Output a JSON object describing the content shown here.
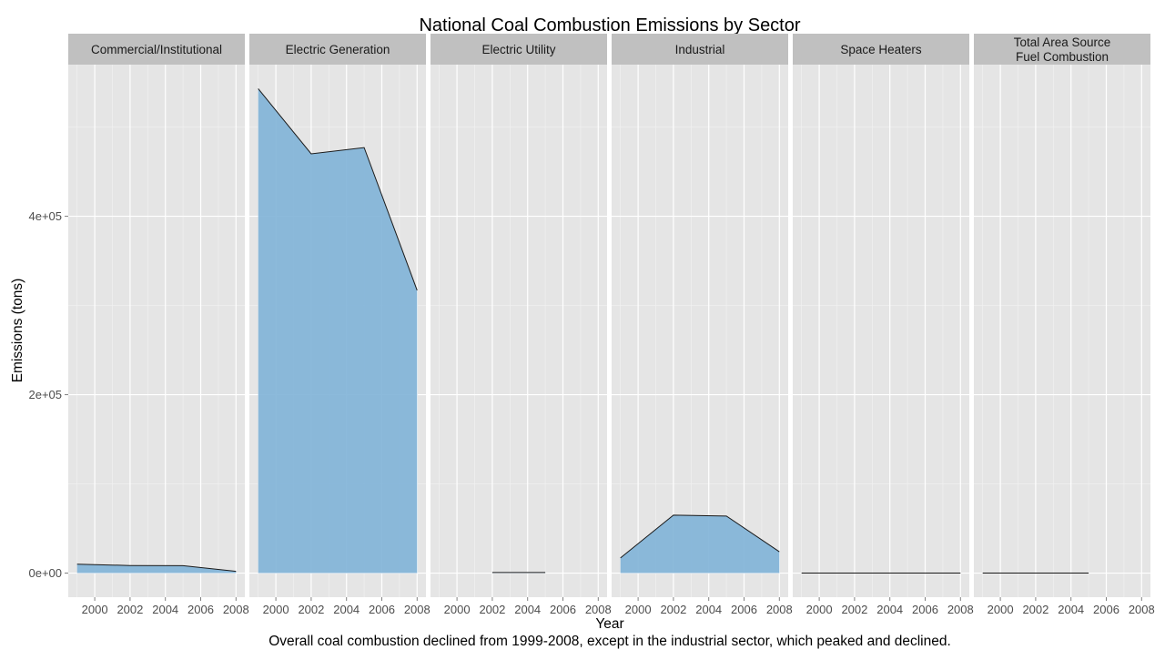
{
  "chart_data": {
    "type": "area",
    "title": "National Coal Combustion Emissions by Sector",
    "xlabel": "Year",
    "ylabel": "Emissions (tons)",
    "caption": "Overall coal combustion declined from 1999-2008, except in the industrial sector, which peaked and declined.",
    "x_ticks": [
      2000,
      2002,
      2004,
      2006,
      2008
    ],
    "xlim": [
      1998.5,
      2008.5
    ],
    "y_ticks": [
      0,
      200000,
      400000
    ],
    "y_tick_labels": [
      "0e+00",
      "2e+05",
      "4e+05"
    ],
    "ylim": [
      -27000,
      570000
    ],
    "grid": true,
    "colors": {
      "area_fill": "#7fb2d7",
      "line": "#1a1a1a",
      "panel_bg": "#e5e5e5",
      "strip_bg": "#c0c0c0",
      "grid_major": "#ffffff",
      "grid_minor": "#f2f2f2"
    },
    "panels": [
      {
        "label": [
          "Commercial/Institutional"
        ],
        "x": [
          1999,
          2002,
          2005,
          2008
        ],
        "values": [
          10000,
          8500,
          8300,
          2000
        ]
      },
      {
        "label": [
          "Electric Generation"
        ],
        "x": [
          1999,
          2002,
          2005,
          2008
        ],
        "values": [
          543000,
          470000,
          477000,
          317000
        ]
      },
      {
        "label": [
          "Electric Utility"
        ],
        "x": [
          2002,
          2005
        ],
        "values": [
          700,
          700
        ]
      },
      {
        "label": [
          "Industrial"
        ],
        "x": [
          1999,
          2002,
          2005,
          2008
        ],
        "values": [
          17000,
          65000,
          64000,
          24000
        ]
      },
      {
        "label": [
          "Space Heaters"
        ],
        "x": [
          1999,
          2002,
          2005,
          2008
        ],
        "values": [
          40,
          40,
          40,
          40
        ]
      },
      {
        "label": [
          "Total Area Source",
          "Fuel Combustion"
        ],
        "x": [
          1999,
          2002,
          2005
        ],
        "values": [
          30,
          30,
          30
        ]
      }
    ]
  }
}
